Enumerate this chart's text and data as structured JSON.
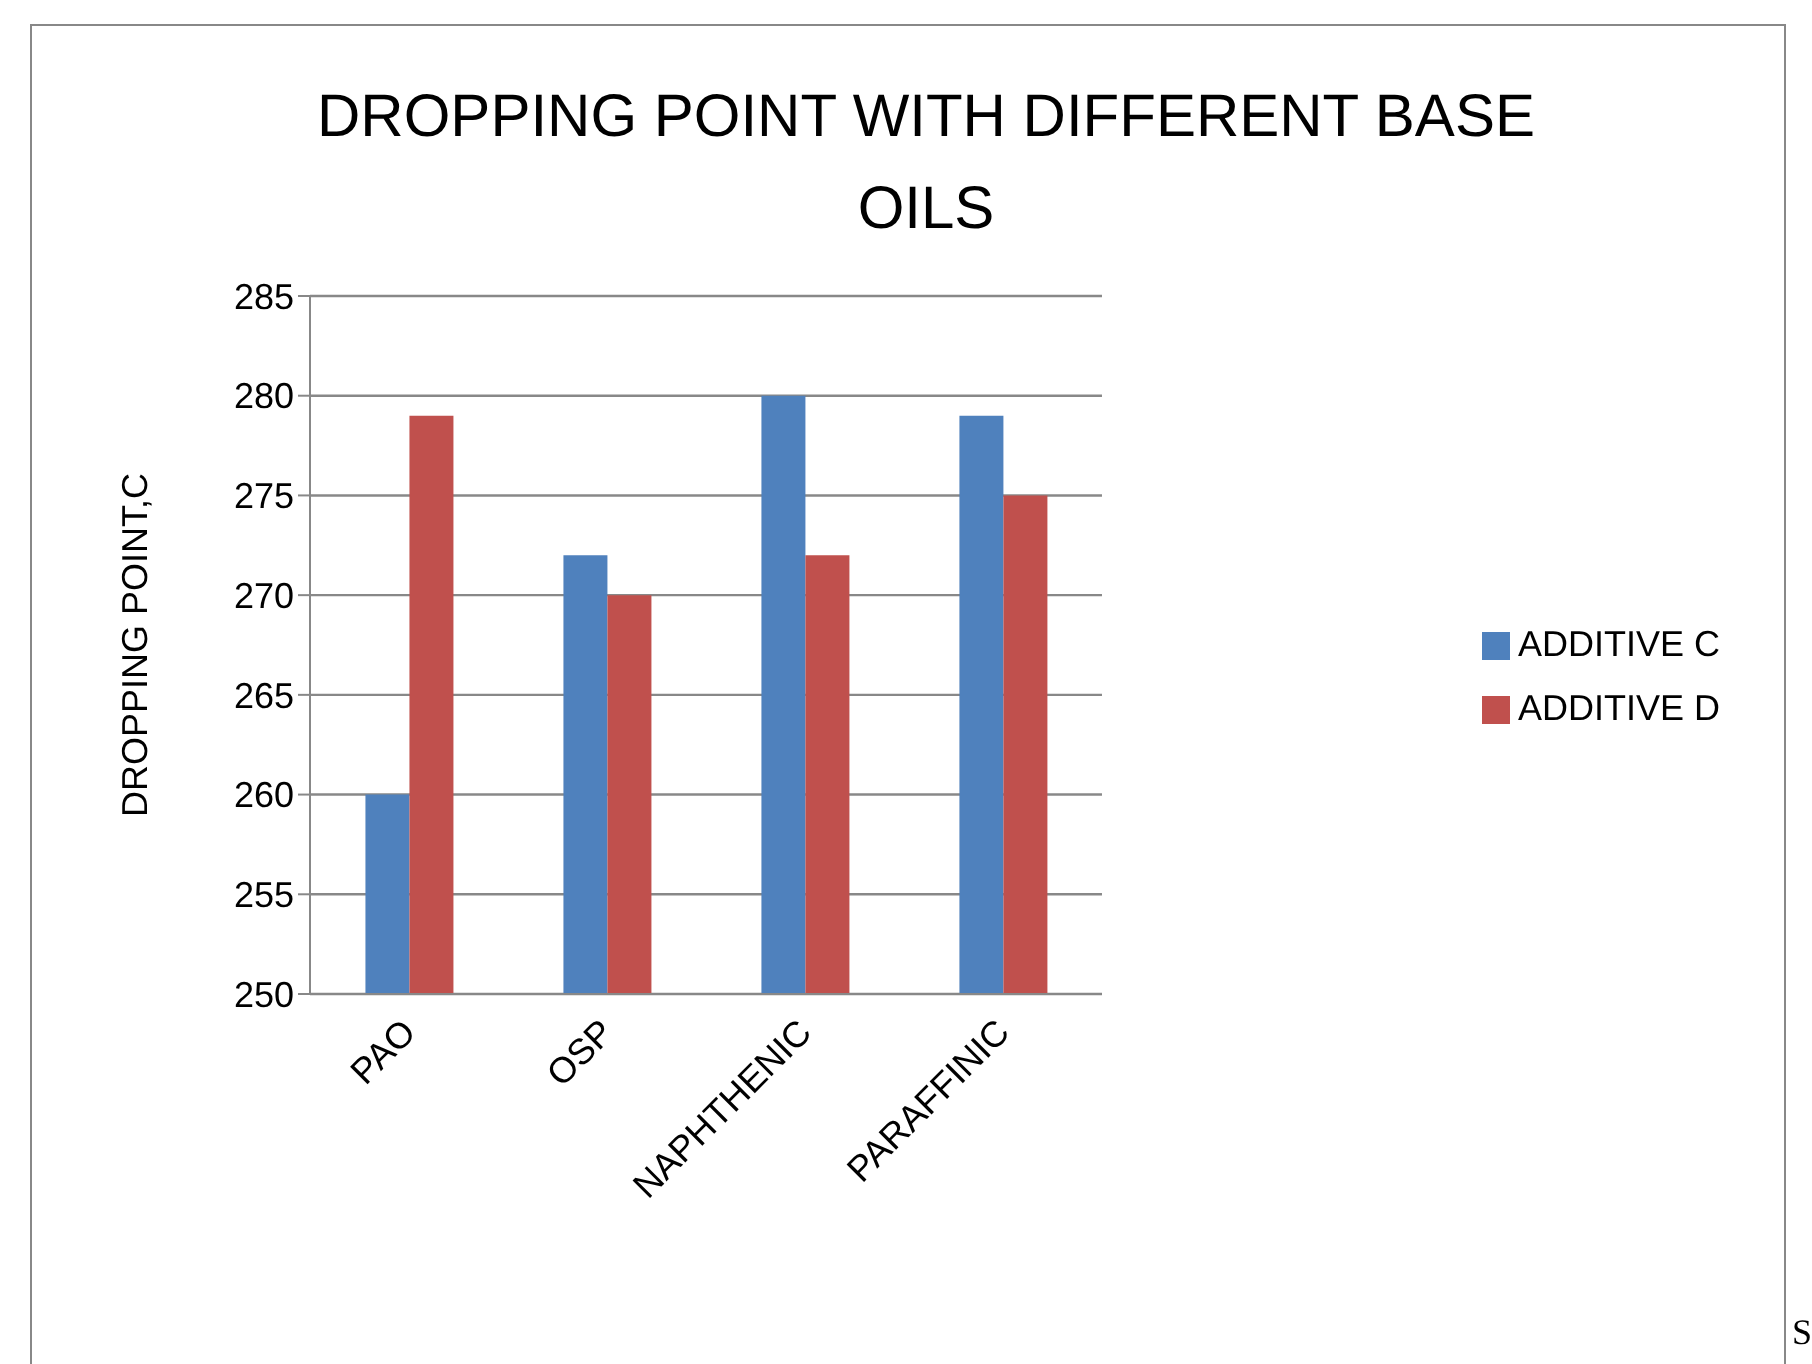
{
  "chart_data": {
    "type": "bar",
    "title": "DROPPING POINT WITH DIFFERENT BASE OILS",
    "ylabel": "DROPPING POINT,C",
    "categories": [
      "PAO",
      "OSP",
      "NAPHTHENIC",
      "PARAFFINIC"
    ],
    "series": [
      {
        "name": "ADDITIVE C",
        "color": "#4f81bd",
        "values": [
          260,
          272,
          280,
          279
        ]
      },
      {
        "name": "ADDITIVE D",
        "color": "#c0504d",
        "values": [
          279,
          270,
          272,
          275
        ]
      }
    ],
    "ylim": [
      250,
      285
    ],
    "yticks": [
      250,
      255,
      260,
      265,
      270,
      275,
      280,
      285
    ],
    "grid": "y",
    "legend": "right",
    "annotations": [
      "S"
    ]
  }
}
